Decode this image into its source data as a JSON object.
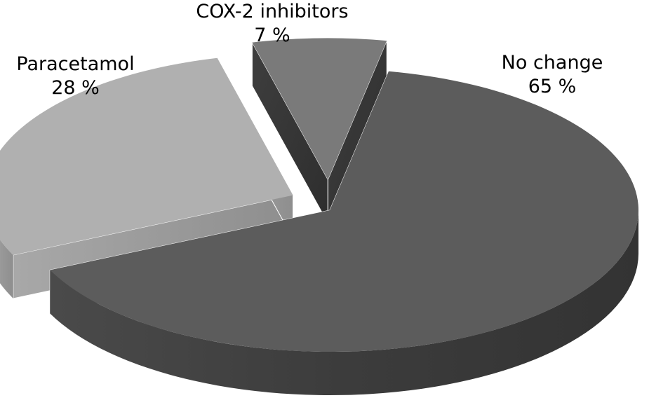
{
  "chart_data": {
    "type": "pie",
    "title": "",
    "slices": [
      {
        "label": "No change",
        "value": 65,
        "value_label": "65 %",
        "color": "#5c5c5c"
      },
      {
        "label": "Paracetamol",
        "value": 28,
        "value_label": "28 %",
        "color": "#b0b0b0"
      },
      {
        "label": "COX-2 inhibitors",
        "value": 7,
        "value_label": "7 %",
        "color": "#7a7a7a"
      }
    ],
    "style": "3d-exploded",
    "legend": "none"
  }
}
